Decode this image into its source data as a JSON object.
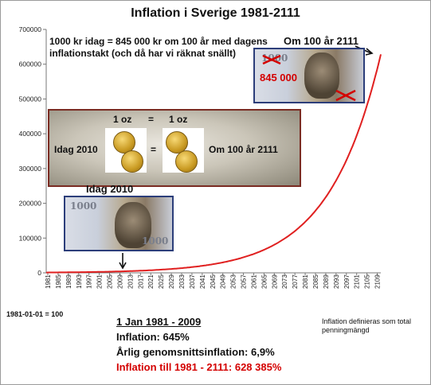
{
  "title": "Inflation i Sverige 1981-2111",
  "chart_data": {
    "type": "line",
    "title": "Inflation i Sverige 1981-2111",
    "xlabel": "",
    "ylabel": "",
    "ylim": [
      0,
      700000
    ],
    "yticks": [
      "0",
      "100000",
      "200000",
      "300000",
      "400000",
      "500000",
      "600000",
      "700000"
    ],
    "xticks": [
      "1981",
      "1985",
      "1989",
      "1993",
      "1997",
      "2001",
      "2005",
      "2009",
      "2013",
      "2017",
      "2021",
      "2025",
      "2029",
      "2033",
      "2037",
      "2041",
      "2045",
      "2049",
      "2053",
      "2057",
      "2061",
      "2065",
      "2069",
      "2073",
      "2077",
      "2081",
      "2085",
      "2089",
      "2093",
      "2097",
      "2101",
      "2105",
      "2109"
    ],
    "x_range": [
      1981,
      2111
    ],
    "grid": "none",
    "series": [
      {
        "color": "#e02020",
        "start_year": 1981,
        "start_value": 1000,
        "end_year": 2111,
        "end_value": 628385
      }
    ]
  },
  "annotations": {
    "top_note": "1000 kr idag = 845 000 kr om 100 år med dagens inflationstakt (och då har vi räknat snällt)",
    "om100_top": "Om 100 år 2111",
    "note_845": "845 000",
    "idag_lower": "Idag 2010",
    "gold_idag": "Idag 2010",
    "gold_om100": "Om 100 år 2111",
    "oz_left": "1 oz",
    "oz_equals": "=",
    "oz_right": "1 oz",
    "oz_mid_equals": "=",
    "note_value": "1000"
  },
  "footer": {
    "base": "1981-01-01 = 100",
    "period": "1 Jan 1981 - 2009",
    "inflation": "Inflation:  645%",
    "annual": "Årlig genomsnittsinflation:  6,9%",
    "projection": "Inflation till 1981 - 2111: 628 385%",
    "definition": "Inflation definieras som total penningmängd"
  },
  "colors": {
    "curve": "#e02020",
    "border_note": "#2c3e7a",
    "gold_border": "#7a2b22",
    "red_text": "#d40000"
  }
}
